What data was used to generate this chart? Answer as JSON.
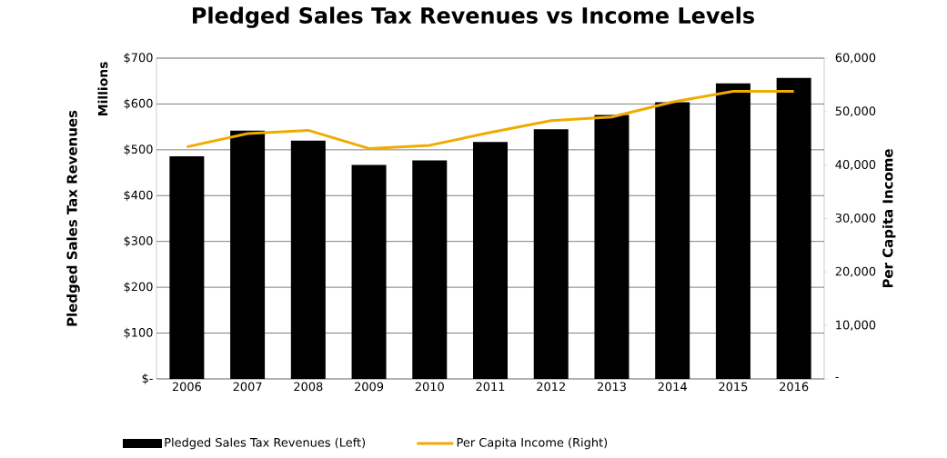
{
  "chart_data": {
    "type": "bar",
    "title": "Pledged Sales Tax Revenues vs Income Levels",
    "ylabel": "Pledged Sales Tax Revenues",
    "y2label": "Per Capita Income",
    "annotations": [
      "Millions"
    ],
    "categories": [
      "2006",
      "2007",
      "2008",
      "2009",
      "2010",
      "2011",
      "2012",
      "2013",
      "2014",
      "2015",
      "2016"
    ],
    "series": [
      {
        "name": "Pledged Sales Tax Revenues (Left)",
        "color": "#000000",
        "values": [
          486,
          542,
          520,
          467,
          477,
          517,
          545,
          576,
          604,
          645,
          657
        ]
      },
      {
        "name": "Per Capita Income (Right)",
        "type": "line",
        "axis": "y2",
        "color": "#f0ab00",
        "values": [
          43400,
          45900,
          46500,
          43100,
          43700,
          46100,
          48300,
          49000,
          51800,
          53800,
          53800
        ]
      }
    ],
    "ylim": [
      0,
      700
    ],
    "yticks": [
      {
        "value": 0,
        "label": "$-"
      },
      {
        "value": 100,
        "label": "$100"
      },
      {
        "value": 200,
        "label": "$200"
      },
      {
        "value": 300,
        "label": "$300"
      },
      {
        "value": 400,
        "label": "$400"
      },
      {
        "value": 500,
        "label": "$500"
      },
      {
        "value": 600,
        "label": "$600"
      },
      {
        "value": 700,
        "label": "$700"
      }
    ],
    "y2lim": [
      0,
      60000
    ],
    "y2ticks": [
      {
        "value": 0,
        "label": "-"
      },
      {
        "value": 10000,
        "label": "10,000"
      },
      {
        "value": 20000,
        "label": "20,000"
      },
      {
        "value": 30000,
        "label": "30,000"
      },
      {
        "value": 40000,
        "label": "40,000"
      },
      {
        "value": 50000,
        "label": "50,000"
      },
      {
        "value": 60000,
        "label": "60,000"
      }
    ],
    "grid": "y",
    "legend": "bottom",
    "marker": "none",
    "line_style": "solid"
  }
}
